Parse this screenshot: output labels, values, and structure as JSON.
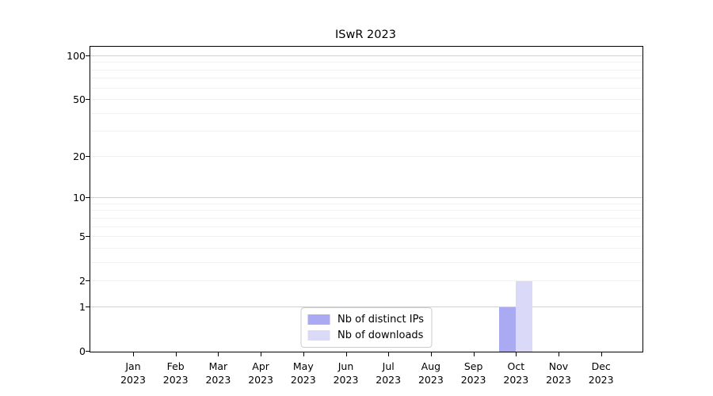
{
  "title": "ISwR 2023",
  "chart_data": {
    "type": "bar",
    "title": "ISwR 2023",
    "xlabel": "",
    "ylabel": "",
    "scale": "log1p",
    "ylim": [
      0,
      116
    ],
    "grid": "on",
    "legend_position": "lower center",
    "categories": [
      {
        "month": "Jan",
        "year": "2023"
      },
      {
        "month": "Feb",
        "year": "2023"
      },
      {
        "month": "Mar",
        "year": "2023"
      },
      {
        "month": "Apr",
        "year": "2023"
      },
      {
        "month": "May",
        "year": "2023"
      },
      {
        "month": "Jun",
        "year": "2023"
      },
      {
        "month": "Jul",
        "year": "2023"
      },
      {
        "month": "Aug",
        "year": "2023"
      },
      {
        "month": "Sep",
        "year": "2023"
      },
      {
        "month": "Oct",
        "year": "2023"
      },
      {
        "month": "Nov",
        "year": "2023"
      },
      {
        "month": "Dec",
        "year": "2023"
      }
    ],
    "series": [
      {
        "name": "Nb of distinct IPs",
        "color": "#aaaaf3",
        "values": [
          0,
          0,
          0,
          0,
          0,
          0,
          0,
          0,
          0,
          1,
          0,
          0
        ]
      },
      {
        "name": "Nb of downloads",
        "color": "#dadaf8",
        "values": [
          0,
          0,
          0,
          0,
          0,
          0,
          0,
          0,
          0,
          2,
          0,
          0
        ]
      }
    ],
    "y_ticks": [
      {
        "label": "100",
        "value": 100
      },
      {
        "label": "50",
        "value": 50
      },
      {
        "label": "20",
        "value": 20
      },
      {
        "label": "10",
        "value": 10
      },
      {
        "label": "5",
        "value": 5
      },
      {
        "label": "2",
        "value": 2
      },
      {
        "label": "1",
        "value": 1
      },
      {
        "label": "0",
        "value": 0
      }
    ]
  },
  "colors": {
    "axis": "#000000",
    "grid_minor": "#f2f2f2",
    "grid_major": "#d0d0d0",
    "legend_border": "#cccccc",
    "background": "#ffffff"
  }
}
